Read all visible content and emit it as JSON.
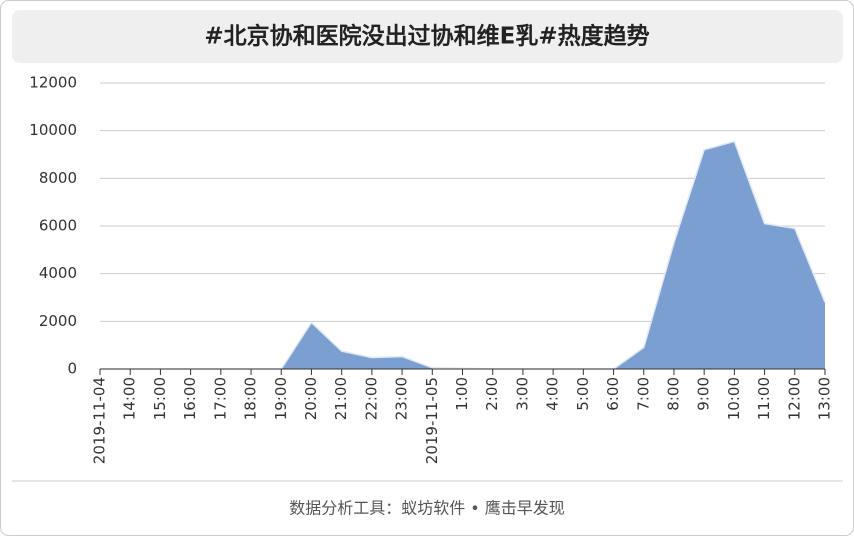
{
  "chart_data": {
    "type": "area",
    "title": "#北京协和医院没出过协和维E乳#热度趋势",
    "categories": [
      "2019-11-04",
      "14:00",
      "15:00",
      "16:00",
      "17:00",
      "18:00",
      "19:00",
      "20:00",
      "21:00",
      "22:00",
      "23:00",
      "2019-11-05",
      "1:00",
      "2:00",
      "3:00",
      "4:00",
      "5:00",
      "6:00",
      "7:00",
      "8:00",
      "9:00",
      "10:00",
      "11:00",
      "12:00",
      "13:00"
    ],
    "values": [
      0,
      0,
      0,
      0,
      0,
      0,
      0,
      1950,
      750,
      480,
      520,
      50,
      30,
      0,
      0,
      0,
      0,
      0,
      900,
      5300,
      9200,
      9550,
      6100,
      5900,
      2800
    ],
    "color": "#7b9fd0",
    "ylim": [
      0,
      12000
    ],
    "yticks": [
      0,
      2000,
      4000,
      6000,
      8000,
      10000,
      12000
    ],
    "grid": true,
    "footer": "数据分析工具：蚁坊软件 • 鹰击早发现"
  }
}
